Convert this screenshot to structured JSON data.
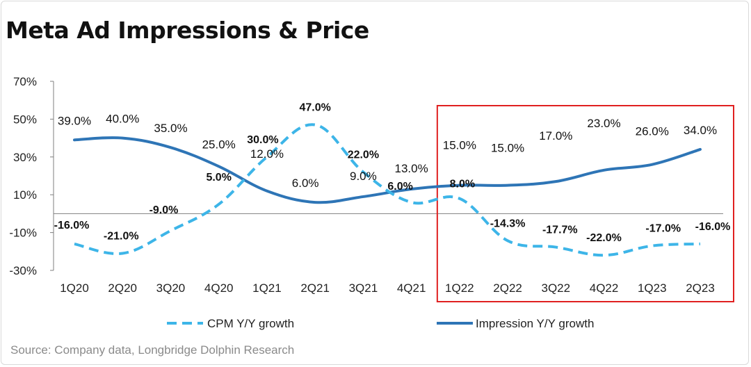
{
  "title": "Meta Ad Impressions & Price",
  "source": "Source:  Company data, Longbridge Dolphin Research",
  "colors": {
    "cpm": "#3db5e8",
    "impression": "#2e75b6",
    "highlight": "#e02020",
    "axis": "#7f7f7f"
  },
  "chart_data": {
    "type": "line",
    "title": "Meta Ad Impressions & Price",
    "categories": [
      "1Q20",
      "2Q20",
      "3Q20",
      "4Q20",
      "1Q21",
      "2Q21",
      "3Q21",
      "4Q21",
      "1Q22",
      "2Q22",
      "3Q22",
      "4Q22",
      "1Q23",
      "2Q23"
    ],
    "ylim": [
      -30,
      70
    ],
    "yticks": [
      70,
      50,
      30,
      10,
      -10,
      -30
    ],
    "ytick_labels": [
      "70%",
      "50%",
      "30%",
      "10%",
      "-10%",
      "-30%"
    ],
    "series": [
      {
        "name": "CPM Y/Y growth",
        "style": "dashed",
        "values": [
          -16.0,
          -21.0,
          -9.0,
          5.0,
          30.0,
          47.0,
          22.0,
          6.0,
          8.0,
          -14.3,
          -17.7,
          -22.0,
          -17.0,
          -16.0
        ],
        "labels": [
          "-16.0%",
          "-21.0%",
          "-9.0%",
          "5.0%",
          "30.0%",
          "47.0%",
          "22.0%",
          "6.0%",
          "8.0%",
          "-14.3%",
          "-17.7%",
          "-22.0%",
          "-17.0%",
          "-16.0%"
        ]
      },
      {
        "name": "Impression Y/Y growth",
        "style": "solid",
        "values": [
          39.0,
          40.0,
          35.0,
          25.0,
          12.0,
          6.0,
          9.0,
          13.0,
          15.0,
          15.0,
          17.0,
          23.0,
          26.0,
          34.0
        ],
        "labels": [
          "39.0%",
          "40.0%",
          "35.0%",
          "25.0%",
          "12.0%",
          "6.0%",
          "9.0%",
          "13.0%",
          "15.0%",
          "15.0%",
          "17.0%",
          "23.0%",
          "26.0%",
          "34.0%"
        ]
      }
    ],
    "highlight_range": [
      "1Q22",
      "2Q23"
    ],
    "legend": {
      "position": "bottom"
    }
  }
}
